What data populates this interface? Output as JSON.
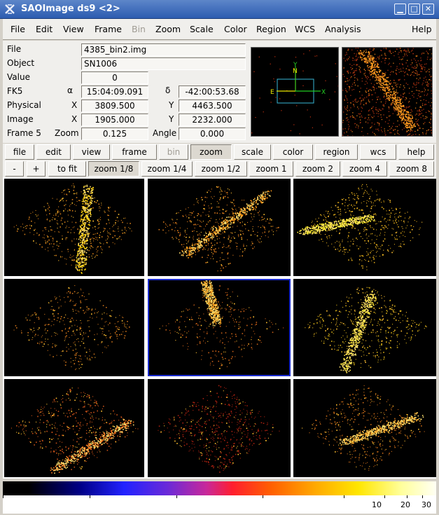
{
  "window": {
    "title": "SAOImage ds9 <2>",
    "controls": [
      "minimize-icon",
      "maximize-icon",
      "close-icon"
    ]
  },
  "menubar": [
    "File",
    "Edit",
    "View",
    "Frame",
    "Bin",
    "Zoom",
    "Scale",
    "Color",
    "Region",
    "WCS",
    "Analysis",
    "Help"
  ],
  "info": {
    "file_label": "File",
    "file": "4385_bin2.img",
    "object_label": "Object",
    "object": "SN1006",
    "value_label": "Value",
    "value": "0",
    "fk5_label": "FK5",
    "alpha_sym": "α",
    "alpha": "15:04:09.091",
    "delta_sym": "δ",
    "delta": "-42:00:53.68",
    "physical_label": "Physical",
    "physical_x_label": "X",
    "physical_x": "3809.500",
    "physical_y_label": "Y",
    "physical_y": "4463.500",
    "image_label": "Image",
    "image_x_label": "X",
    "image_x": "1905.000",
    "image_y_label": "Y",
    "image_y": "2232.000",
    "frame_label": "Frame 5",
    "zoom_label": "Zoom",
    "zoom": "0.125",
    "angle_label": "Angle",
    "angle": "0.000"
  },
  "magnifier": {
    "compass_n": "N",
    "compass_e": "E",
    "axis_x": "X",
    "axis_y": "Y"
  },
  "buttonbar": [
    "file",
    "edit",
    "view",
    "frame",
    "bin",
    "zoom",
    "scale",
    "color",
    "region",
    "wcs",
    "help"
  ],
  "zoombar": [
    "-",
    "+",
    "to fit",
    "zoom 1/8",
    "zoom 1/4",
    "zoom 1/2",
    "zoom 1",
    "zoom 2",
    "zoom 4",
    "zoom 8"
  ],
  "frames": {
    "count": 9,
    "current_frame": 5,
    "layout": "tile 3x3"
  },
  "colorbar": {
    "colormap": "heat-like",
    "ticks": [
      "10",
      "20",
      "30"
    ]
  }
}
